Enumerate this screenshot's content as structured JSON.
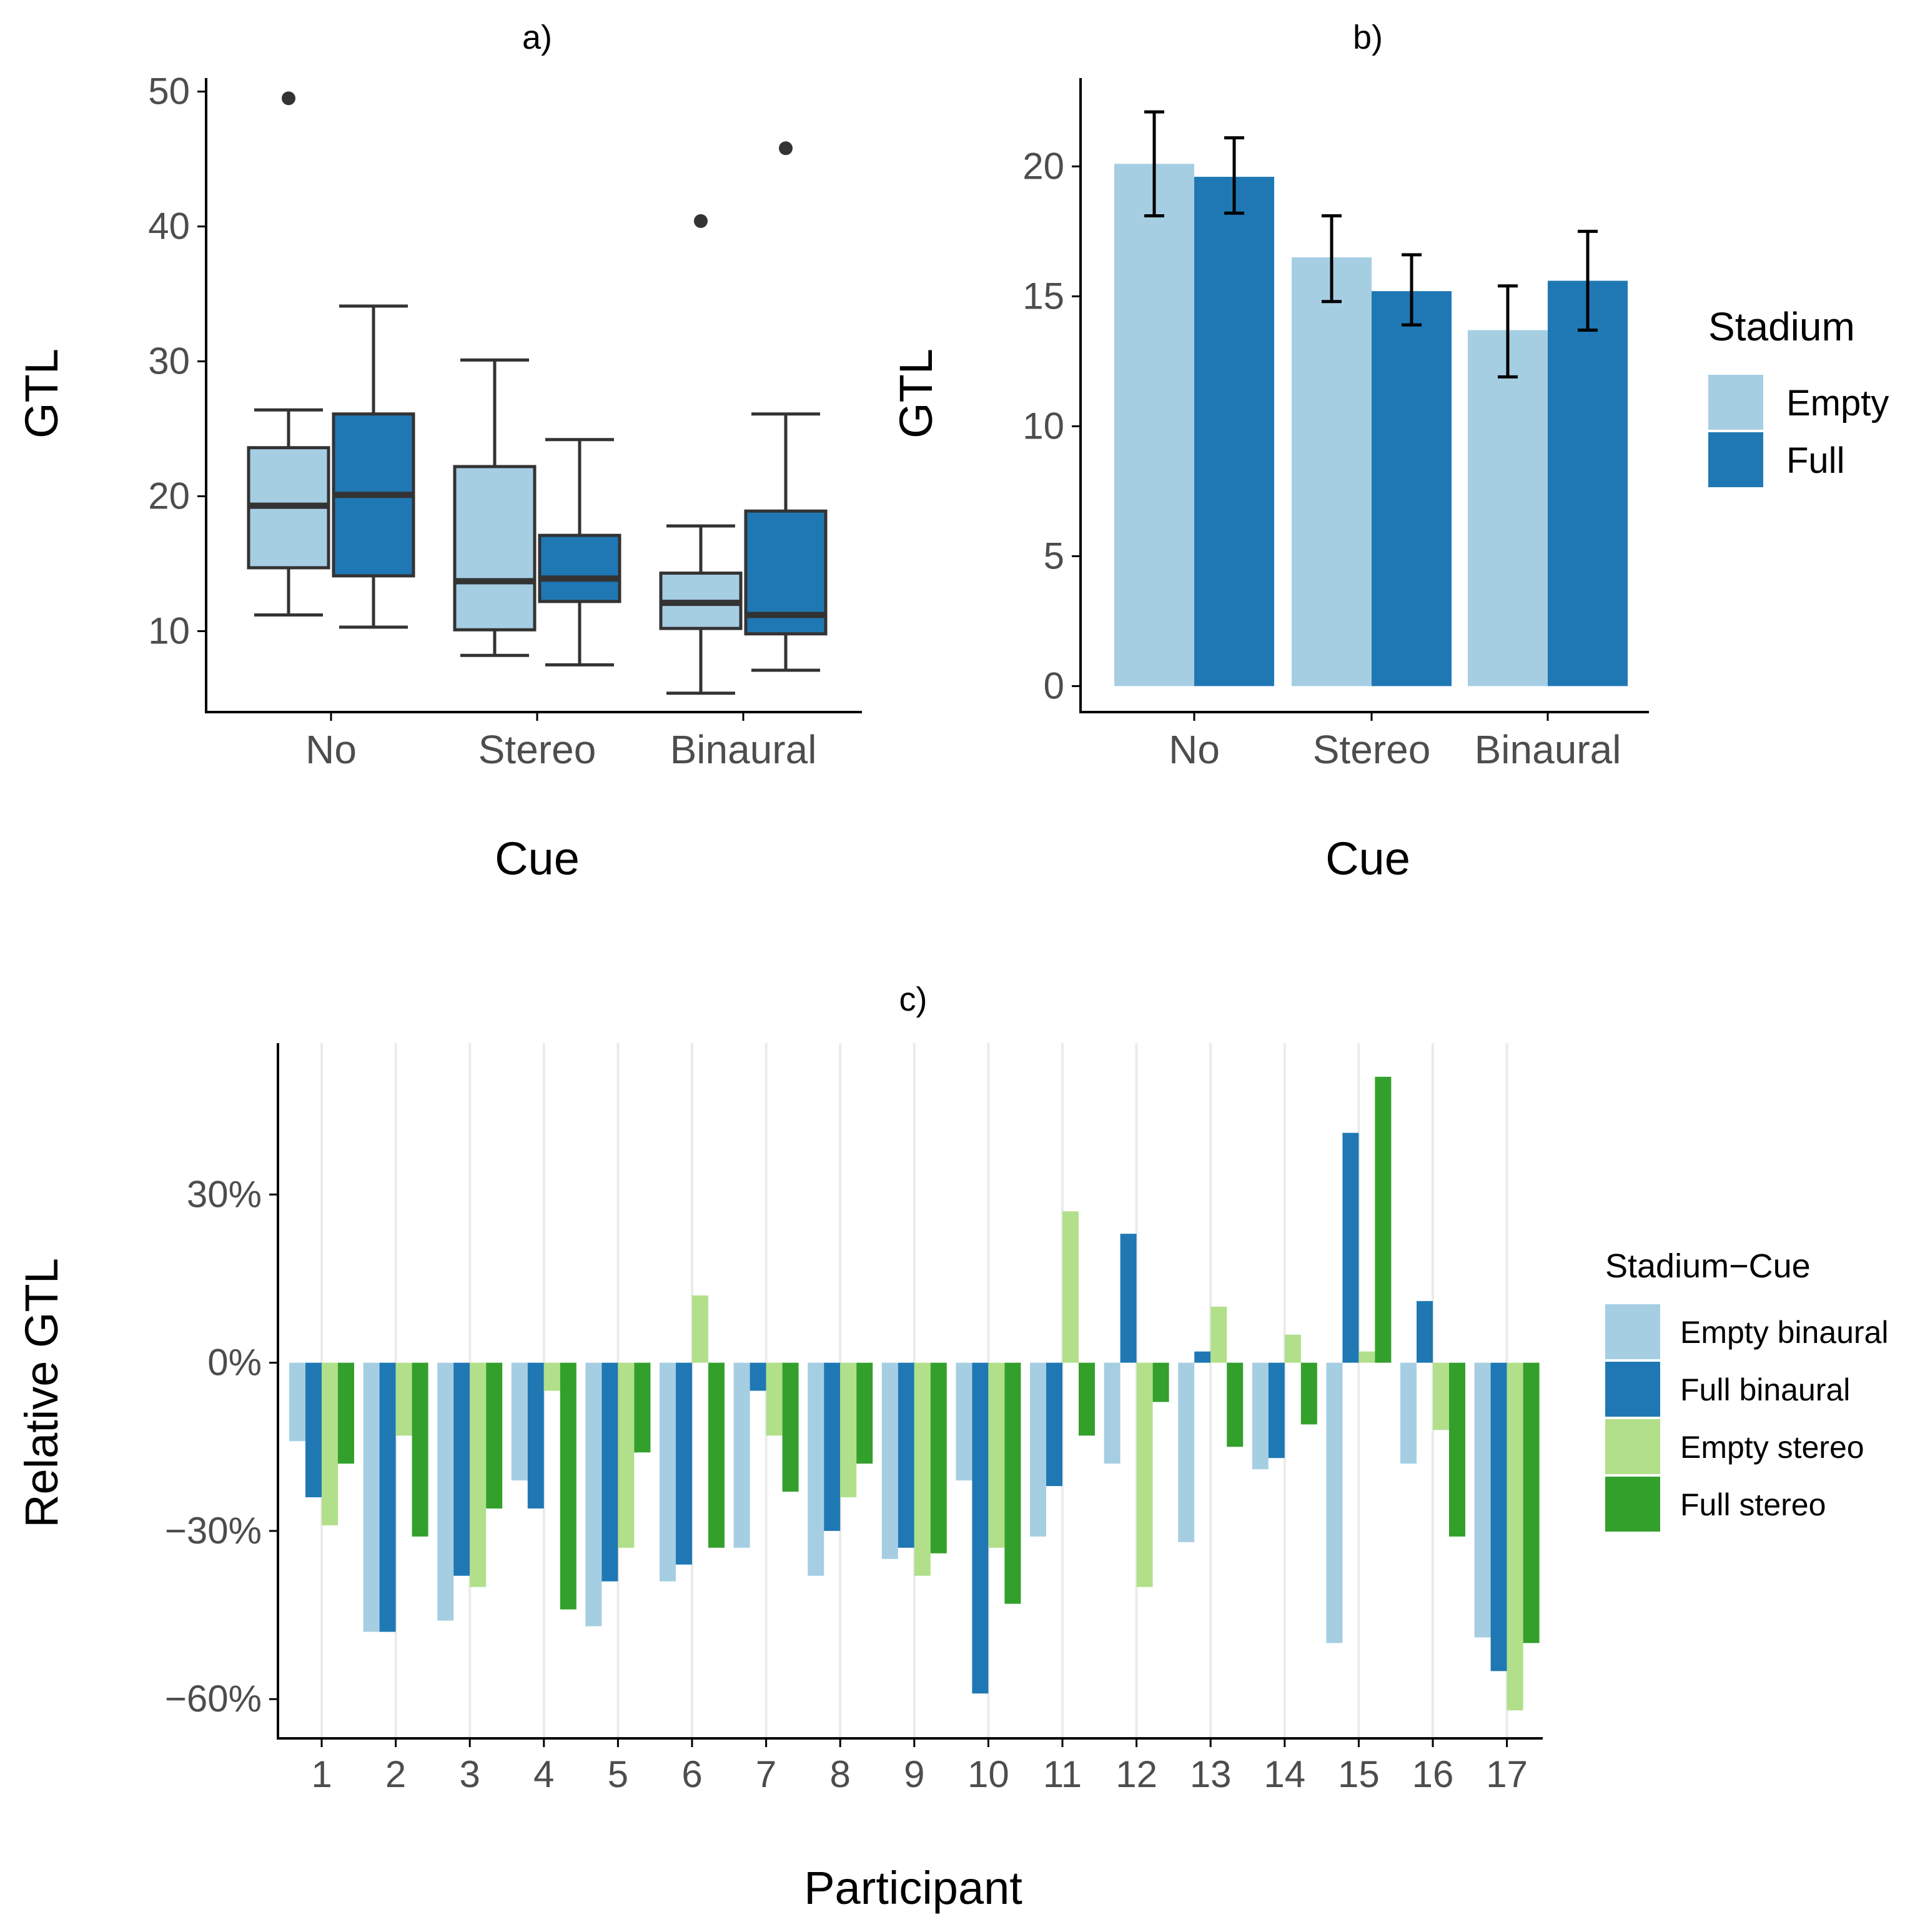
{
  "colors": {
    "empty": "#a6cee3",
    "full": "#1f78b4",
    "empty_stereo": "#b2df8a",
    "full_stereo": "#33a02c",
    "axis": "#000000",
    "tick_text": "#4d4d4d",
    "box_line": "#333333",
    "grid": "#ebebeb"
  },
  "chart_data": [
    {
      "panel": "a)",
      "type": "box",
      "title": "a)",
      "xlabel": "Cue",
      "ylabel": "GTL",
      "categories": [
        "No",
        "Stereo",
        "Binaural"
      ],
      "yticks": [
        10,
        20,
        30,
        40,
        50
      ],
      "ylim": [
        4,
        51
      ],
      "series": [
        {
          "name": "Empty",
          "color_key": "empty",
          "boxes": [
            {
              "cat": "No",
              "min": 11.2,
              "q1": 14.7,
              "median": 19.3,
              "q3": 23.6,
              "max": 26.4,
              "outliers": [
                49.5
              ]
            },
            {
              "cat": "Stereo",
              "min": 8.2,
              "q1": 10.1,
              "median": 13.7,
              "q3": 22.2,
              "max": 30.1,
              "outliers": []
            },
            {
              "cat": "Binaural",
              "min": 5.4,
              "q1": 10.2,
              "median": 12.1,
              "q3": 14.3,
              "max": 17.8,
              "outliers": [
                40.4
              ]
            }
          ]
        },
        {
          "name": "Full",
          "color_key": "full",
          "boxes": [
            {
              "cat": "No",
              "min": 10.3,
              "q1": 14.1,
              "median": 20.1,
              "q3": 26.1,
              "max": 34.1,
              "outliers": []
            },
            {
              "cat": "Stereo",
              "min": 7.5,
              "q1": 12.2,
              "median": 13.9,
              "q3": 17.1,
              "max": 24.2,
              "outliers": []
            },
            {
              "cat": "Binaural",
              "min": 7.1,
              "q1": 9.8,
              "median": 11.2,
              "q3": 18.9,
              "max": 26.1,
              "outliers": [
                45.8
              ]
            }
          ]
        }
      ]
    },
    {
      "panel": "b)",
      "type": "bar",
      "title": "b)",
      "xlabel": "Cue",
      "ylabel": "GTL",
      "categories": [
        "No",
        "Stereo",
        "Binaural"
      ],
      "yticks": [
        0,
        5,
        10,
        15,
        20
      ],
      "ylim": [
        -1,
        23.4
      ],
      "series": [
        {
          "name": "Empty",
          "color_key": "empty",
          "values": [
            20.1,
            16.5,
            13.7
          ],
          "err_low": [
            18.1,
            14.8,
            11.9
          ],
          "err_high": [
            22.1,
            18.1,
            15.4
          ]
        },
        {
          "name": "Full",
          "color_key": "full",
          "values": [
            19.6,
            15.2,
            15.6
          ],
          "err_low": [
            18.2,
            13.9,
            13.7
          ],
          "err_high": [
            21.1,
            16.6,
            17.5
          ]
        }
      ],
      "legend_title": "Stadium",
      "legend_items": [
        {
          "label": "Empty",
          "color_key": "empty"
        },
        {
          "label": "Full",
          "color_key": "full"
        }
      ]
    },
    {
      "panel": "c)",
      "type": "bar",
      "title": "c)",
      "xlabel": "Participant",
      "ylabel": "Relative GTL",
      "categories": [
        "1",
        "2",
        "3",
        "4",
        "5",
        "6",
        "7",
        "8",
        "9",
        "10",
        "11",
        "12",
        "13",
        "14",
        "15",
        "16",
        "17"
      ],
      "yticks": [
        -60,
        -30,
        0,
        30
      ],
      "ytick_labels": [
        "−60%",
        "−30%",
        "0%",
        "30%"
      ],
      "ylim": [
        -67,
        57
      ],
      "series": [
        {
          "name": "Empty binaural",
          "color_key": "empty",
          "values": [
            -14,
            -48,
            -46,
            -21,
            -47,
            -39,
            -33,
            -38,
            -35,
            -21,
            -31,
            -18,
            -32,
            -19,
            -50,
            -18,
            -49
          ]
        },
        {
          "name": "Full binaural",
          "color_key": "full",
          "values": [
            -24,
            -48,
            -38,
            -26,
            -39,
            -36,
            -5,
            -30,
            -33,
            -59,
            -22,
            23,
            2,
            -17,
            41,
            11,
            -55
          ]
        },
        {
          "name": "Empty stereo",
          "color_key": "empty_stereo",
          "values": [
            -29,
            -13,
            -40,
            -5,
            -33,
            12,
            -13,
            -24,
            -38,
            -33,
            27,
            -40,
            10,
            5,
            2,
            -12,
            -62
          ]
        },
        {
          "name": "Full stereo",
          "color_key": "full_stereo",
          "values": [
            -18,
            -31,
            -26,
            -44,
            -16,
            -33,
            -23,
            -18,
            -34,
            -43,
            -13,
            -7,
            -15,
            -11,
            51,
            -31,
            -50
          ]
        }
      ],
      "legend_title": "Stadium−Cue",
      "legend_items": [
        {
          "label": "Empty binaural",
          "color_key": "empty"
        },
        {
          "label": "Full binaural",
          "color_key": "full"
        },
        {
          "label": "Empty stereo",
          "color_key": "empty_stereo"
        },
        {
          "label": "Full stereo",
          "color_key": "full_stereo"
        }
      ]
    }
  ]
}
